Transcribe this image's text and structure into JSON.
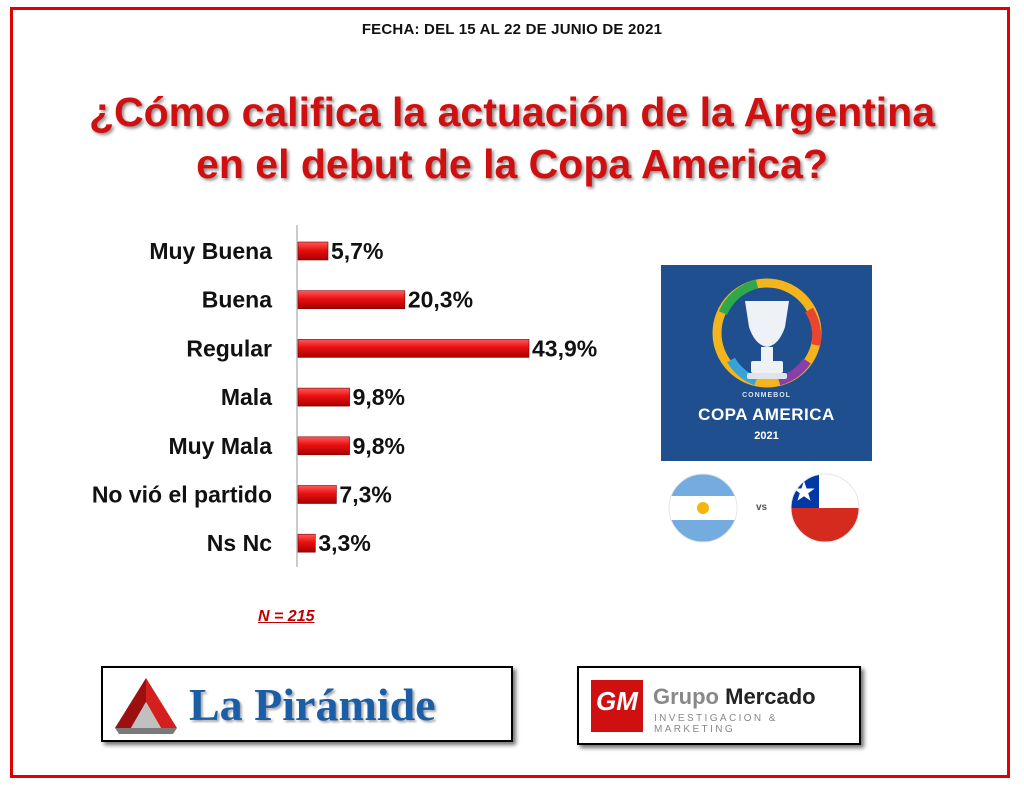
{
  "header": {
    "date": "FECHA: DEL 15 AL 22 DE JUNIO DE 2021",
    "question_line1": "¿Cómo califica la actuación de la Argentina",
    "question_line2": "en el debut de la Copa America?"
  },
  "chart_data": {
    "type": "bar",
    "orientation": "horizontal",
    "categories": [
      "Muy Buena",
      "Buena",
      "Regular",
      "Mala",
      "Muy Mala",
      "No vió el partido",
      "Ns Nc"
    ],
    "values": [
      5.7,
      20.3,
      43.9,
      9.8,
      9.8,
      7.3,
      3.3
    ],
    "labels": [
      "5,7%",
      "20,3%",
      "43,9%",
      "9,8%",
      "9,8%",
      "7,3%",
      "3,3%"
    ],
    "unit": "%",
    "bar_color": "#e81010",
    "grid": false,
    "legend": "none"
  },
  "sample": {
    "label": "N = 215"
  },
  "logos": {
    "left": {
      "name": "La Pirámide"
    },
    "right": {
      "monogram": "GM",
      "word1": "Grupo",
      "word2": "Mercado",
      "tagline": "INVESTIGACION & MARKETING"
    }
  },
  "tournament": {
    "org": "CONMEBOL",
    "name": "COPA AMERICA",
    "year": "2021",
    "vs": "vs"
  },
  "colors": {
    "accent": "#d01010",
    "frame": "#e00000",
    "copa_bg": "#1f4f8f"
  }
}
